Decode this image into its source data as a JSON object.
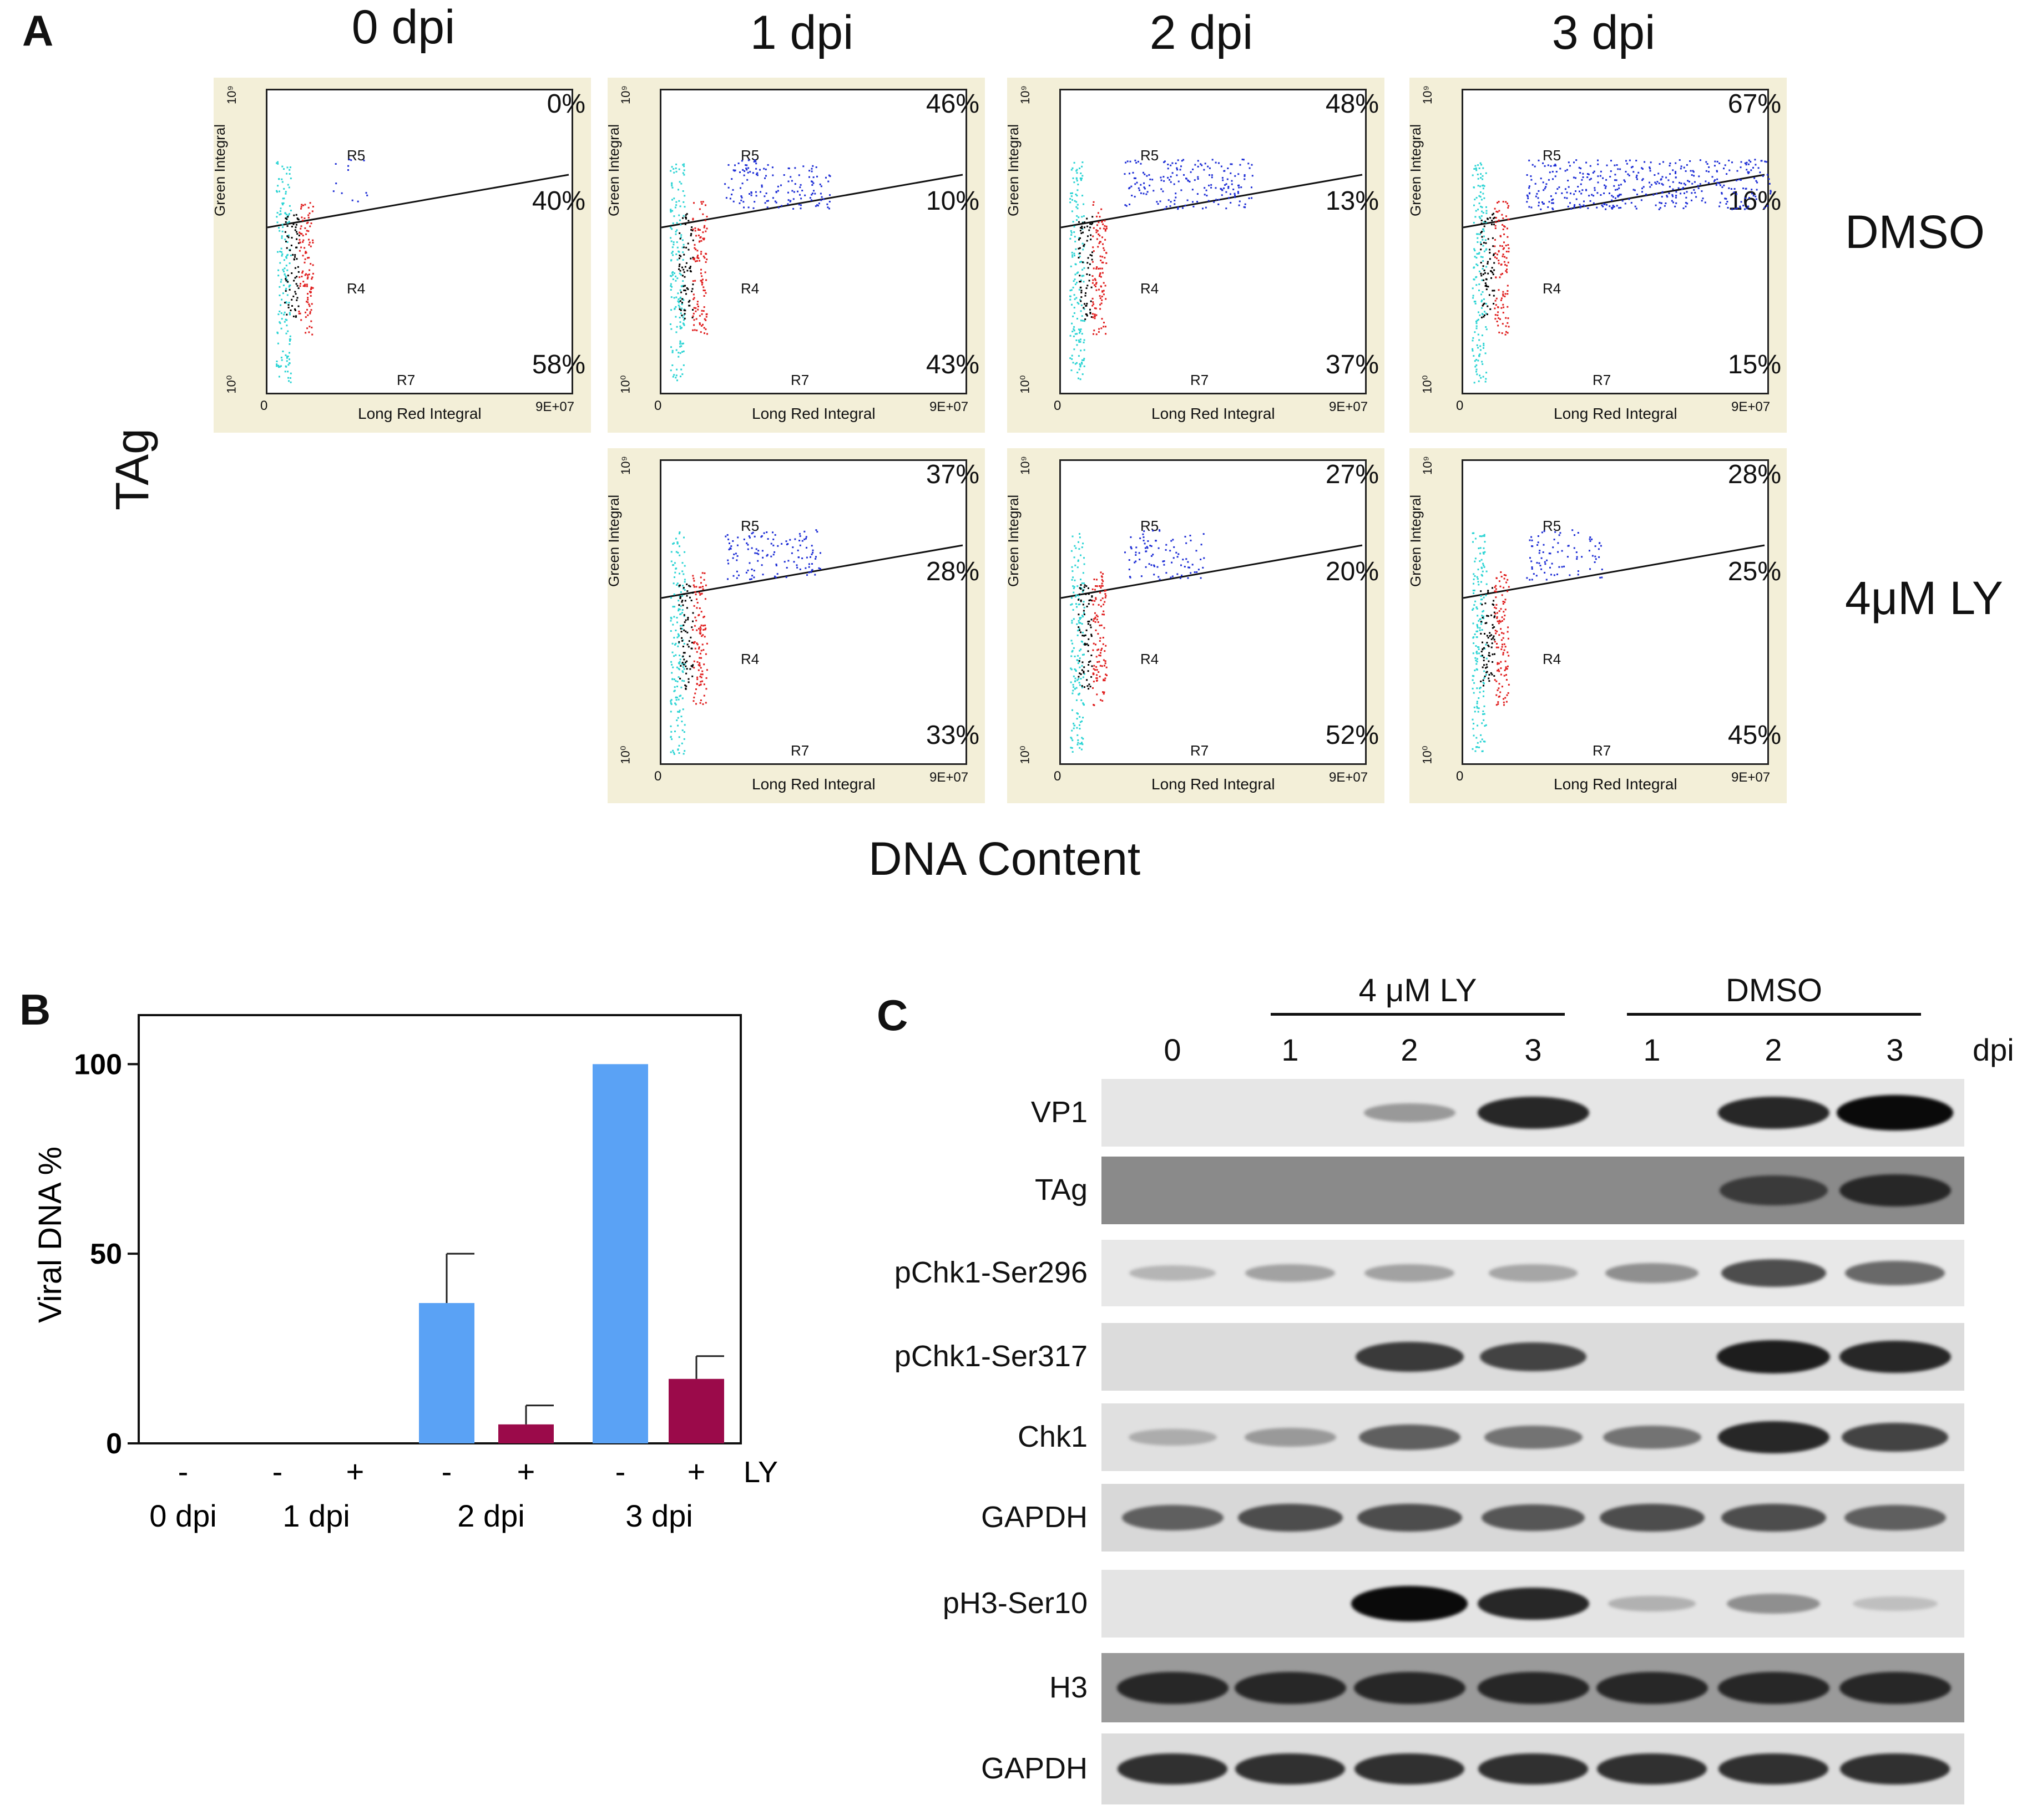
{
  "panel_a": {
    "letter": "A",
    "columns": [
      "0 dpi",
      "1 dpi",
      "2 dpi",
      "3 dpi"
    ],
    "rows": [
      "DMSO",
      "4μM LY"
    ],
    "y_axis_label": "TAg",
    "x_axis_label": "DNA Content",
    "plot_text": {
      "y_title": "Green Integral",
      "x_title": "Long Red Integral",
      "x_max": "9E+07",
      "x_min": "0",
      "y_top": "10⁹",
      "y_bot": "10⁰",
      "gate_upper": "R5",
      "gate_lower": "R4",
      "gate_axis": "R7"
    },
    "dmso": [
      {
        "top": "0%",
        "mid": "40%",
        "bot": "58%"
      },
      {
        "top": "46%",
        "mid": "10%",
        "bot": "43%"
      },
      {
        "top": "48%",
        "mid": "13%",
        "bot": "37%"
      },
      {
        "top": "67%",
        "mid": "16%",
        "bot": "15%"
      }
    ],
    "ly": [
      {
        "top": "37%",
        "mid": "28%",
        "bot": "33%"
      },
      {
        "top": "27%",
        "mid": "20%",
        "bot": "52%"
      },
      {
        "top": "28%",
        "mid": "25%",
        "bot": "45%"
      }
    ],
    "colors": {
      "panel_bg": "#f3efd8",
      "cyan": "#2dd4d4",
      "red": "#e02020",
      "blue": "#1f2fd6",
      "black": "#000000"
    }
  },
  "panel_b": {
    "letter": "B",
    "chart_data": {
      "type": "bar",
      "ylabel": "Viral DNA %",
      "ylim": [
        0,
        110
      ],
      "yticks": [
        "0",
        "50",
        "100"
      ],
      "ly_row_label": "LY",
      "groups": [
        "0 dpi",
        "1 dpi",
        "2 dpi",
        "3 dpi"
      ],
      "bars": [
        {
          "group": "0 dpi",
          "ly": "-",
          "value": 0,
          "error": 0,
          "color": "#5aa2f5"
        },
        {
          "group": "1 dpi",
          "ly": "-",
          "value": 0,
          "error": 0,
          "color": "#5aa2f5"
        },
        {
          "group": "1 dpi",
          "ly": "+",
          "value": 0,
          "error": 0,
          "color": "#9b0a4a"
        },
        {
          "group": "2 dpi",
          "ly": "-",
          "value": 37,
          "error": 13,
          "color": "#5aa2f5"
        },
        {
          "group": "2 dpi",
          "ly": "+",
          "value": 5,
          "error": 5,
          "color": "#9b0a4a"
        },
        {
          "group": "3 dpi",
          "ly": "-",
          "value": 100,
          "error": 0,
          "color": "#5aa2f5"
        },
        {
          "group": "3 dpi",
          "ly": "+",
          "value": 17,
          "error": 6,
          "color": "#9b0a4a"
        }
      ]
    }
  },
  "panel_c": {
    "letter": "C",
    "group_ly": "4 μM LY",
    "group_dmso": "DMSO",
    "lanes": [
      "0",
      "1",
      "2",
      "3",
      "1",
      "2",
      "3"
    ],
    "lane_unit": "dpi",
    "blots": [
      {
        "label": "VP1",
        "bg": "#e6e6e6",
        "intensity": [
          0,
          0,
          0.25,
          0.85,
          0,
          0.85,
          1
        ]
      },
      {
        "label": "TAg",
        "bg": "#8a8a8a",
        "intensity": [
          0,
          0,
          0,
          0,
          0,
          0.75,
          0.85
        ]
      },
      {
        "label": "pChk1-Ser296",
        "bg": "#e8e8e8",
        "intensity": [
          0.1,
          0.2,
          0.2,
          0.18,
          0.3,
          0.65,
          0.5
        ]
      },
      {
        "label": "pChk1-Ser317",
        "bg": "#dcdcdc",
        "intensity": [
          0,
          0,
          0.75,
          0.7,
          0,
          0.9,
          0.85
        ]
      },
      {
        "label": "Chk1",
        "bg": "#e0e0e0",
        "intensity": [
          0.15,
          0.25,
          0.55,
          0.45,
          0.45,
          0.85,
          0.7
        ]
      },
      {
        "label": "GAPDH",
        "bg": "#d8d8d8",
        "intensity": [
          0.55,
          0.65,
          0.65,
          0.6,
          0.65,
          0.65,
          0.55
        ]
      },
      {
        "label": "pH3-Ser10",
        "bg": "#e4e4e4",
        "intensity": [
          0,
          0,
          1,
          0.85,
          0.12,
          0.3,
          0.05
        ]
      },
      {
        "label": "H3",
        "bg": "#9a9a9a",
        "intensity": [
          0.85,
          0.85,
          0.85,
          0.85,
          0.85,
          0.85,
          0.85
        ]
      },
      {
        "label": "GAPDH",
        "bg": "#dcdcdc",
        "intensity": [
          0.8,
          0.8,
          0.8,
          0.8,
          0.8,
          0.8,
          0.8
        ]
      }
    ]
  }
}
